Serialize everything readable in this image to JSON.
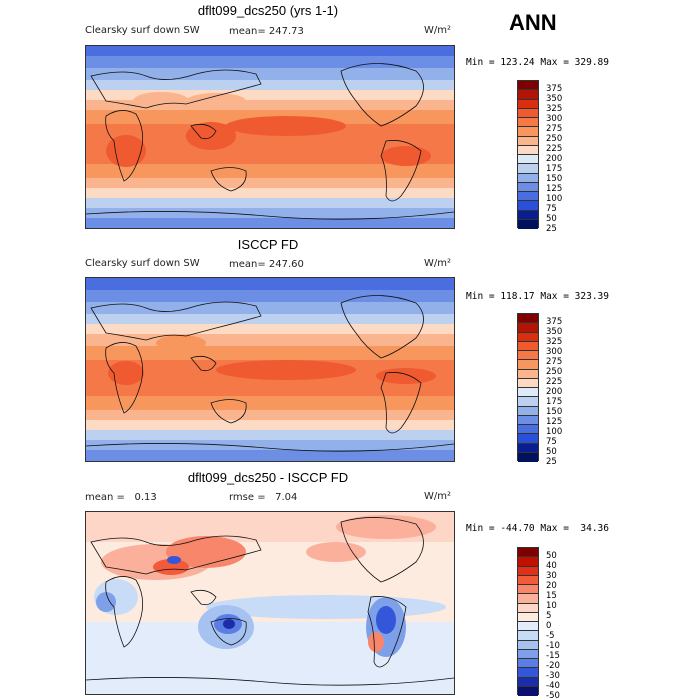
{
  "season": "ANN",
  "panels": [
    {
      "title": "dflt099_dcs250 (yrs 1-1)",
      "variable": "Clearsky surf down SW",
      "mean_label": "mean= 247.73",
      "units": "W/m²",
      "minmax": "Min = 123.24 Max = 329.89",
      "colorbar_labels": [
        "375",
        "350",
        "325",
        "300",
        "275",
        "250",
        "225",
        "200",
        "175",
        "150",
        "125",
        "100",
        "75",
        "50",
        "25"
      ]
    },
    {
      "title": "ISCCP FD",
      "variable": "Clearsky surf down SW",
      "mean_label": "mean= 247.60",
      "units": "W/m²",
      "minmax": "Min = 118.17 Max = 323.39",
      "colorbar_labels": [
        "375",
        "350",
        "325",
        "300",
        "275",
        "250",
        "225",
        "200",
        "175",
        "150",
        "125",
        "100",
        "75",
        "50",
        "25"
      ]
    },
    {
      "title": "dflt099_dcs250 - ISCCP FD",
      "mean_label": "mean =   0.13",
      "rmse_label": "rmse =   7.04",
      "units": "W/m²",
      "minmax": "Min = -44.70 Max =  34.36",
      "colorbar_labels": [
        "50",
        "40",
        "30",
        "20",
        "15",
        "10",
        "5",
        "0",
        "-5",
        "-10",
        "-15",
        "-20",
        "-30",
        "-40",
        "-50"
      ]
    }
  ],
  "colors": {
    "abs_scale": [
      "#7f0000",
      "#b01508",
      "#d8300f",
      "#ef5a30",
      "#f57848",
      "#f7975e",
      "#fab48e",
      "#fddac4",
      "#ddeaf8",
      "#bcd0f0",
      "#92b0ea",
      "#6d8ee5",
      "#4a6ee0",
      "#2a4fd8",
      "#0a1e8f",
      "#00125e"
    ],
    "diff_scale": [
      "#7f0000",
      "#c01000",
      "#e0301a",
      "#f25a3a",
      "#f7866a",
      "#fab09a",
      "#fdd6c8",
      "#fdebe0",
      "#e2ecfb",
      "#c8dbf7",
      "#a6c2f0",
      "#7ea0e8",
      "#5a7ee4",
      "#3456d8",
      "#1a2ea8",
      "#0a1070"
    ]
  }
}
